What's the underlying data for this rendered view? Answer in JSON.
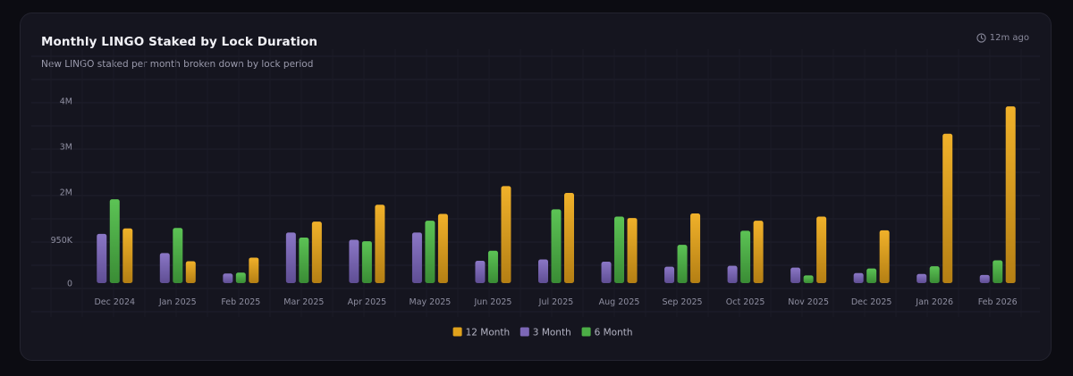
{
  "header": {
    "title": "Monthly LINGO Staked by Lock Duration",
    "subtitle": "New LINGO staked per month broken down by lock period",
    "updated": "12m ago"
  },
  "colors": {
    "12 Month": "#e0a21c",
    "3 Month": "#7c67b6",
    "6 Month": "#4cae46"
  },
  "chart_data": {
    "type": "bar",
    "title": "Monthly LINGO Staked by Lock Duration",
    "subtitle": "New LINGO staked per month broken down by lock period",
    "xlabel": "",
    "ylabel": "",
    "ylim": [
      0,
      4000000
    ],
    "yticks": [
      0,
      950000,
      2000000,
      3000000,
      4000000
    ],
    "ytick_labels": [
      "0",
      "950K",
      "2M",
      "3M",
      "4M"
    ],
    "legend_position": "bottom-center",
    "legend_order": [
      "12 Month",
      "3 Month",
      "6 Month"
    ],
    "bar_order": [
      "3 Month",
      "6 Month",
      "12 Month"
    ],
    "categories": [
      "Dec 2024",
      "Jan 2025",
      "Feb 2025",
      "Mar 2025",
      "Apr 2025",
      "May 2025",
      "Jun 2025",
      "Jul 2025",
      "Aug 2025",
      "Sep 2025",
      "Oct 2025",
      "Nov 2025",
      "Dec 2025",
      "Jan 2026",
      "Feb 2026"
    ],
    "series": [
      {
        "name": "12 Month",
        "values": [
          1200000,
          480000,
          560000,
          1350000,
          1720000,
          1520000,
          2130000,
          1980000,
          1430000,
          1530000,
          1370000,
          1460000,
          1160000,
          3280000,
          3880000
        ]
      },
      {
        "name": "3 Month",
        "values": [
          1080000,
          660000,
          210000,
          1110000,
          950000,
          1110000,
          490000,
          520000,
          470000,
          360000,
          380000,
          340000,
          220000,
          200000,
          180000
        ]
      },
      {
        "name": "6 Month",
        "values": [
          1840000,
          1210000,
          230000,
          1000000,
          920000,
          1370000,
          710000,
          1620000,
          1460000,
          840000,
          1150000,
          170000,
          320000,
          370000,
          500000
        ]
      }
    ]
  }
}
